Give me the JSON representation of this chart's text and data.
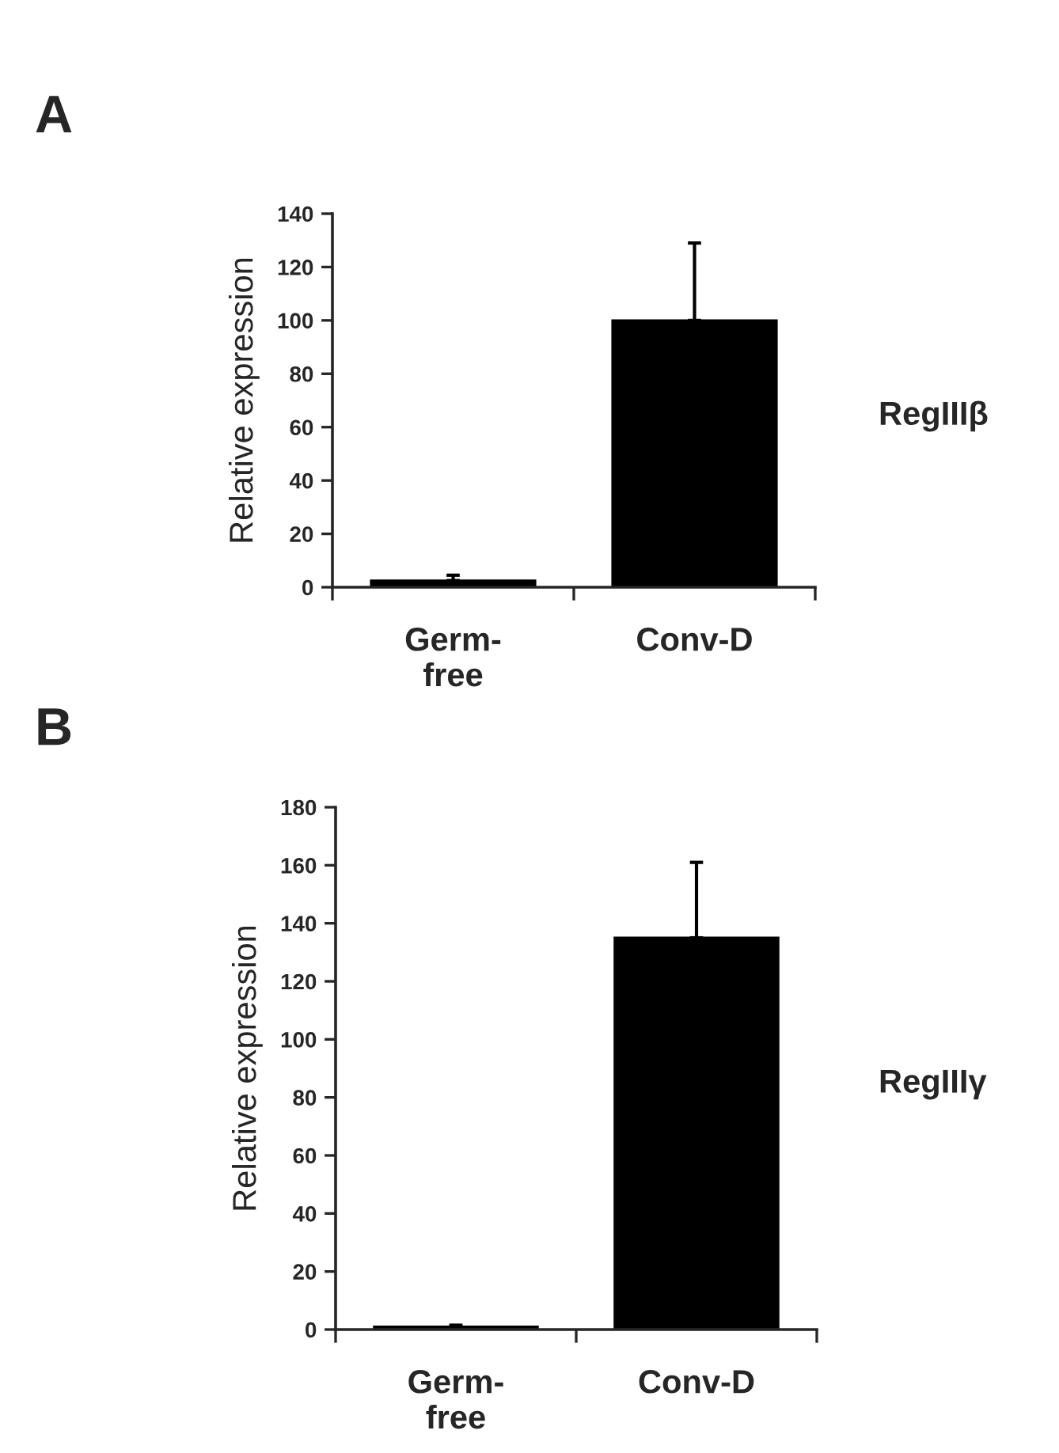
{
  "chart_data": [
    {
      "type": "bar",
      "title": "A",
      "ylabel": "Relative expression",
      "categories": [
        "Germ-\nfree",
        "Conv-D"
      ],
      "values": [
        2.5,
        100
      ],
      "errors": [
        [
          2.5,
          4.5
        ],
        [
          100,
          129
        ]
      ],
      "color": "#000000",
      "ylim": [
        0,
        140
      ],
      "yticks": [
        0,
        20,
        40,
        60,
        80,
        100,
        120,
        140
      ],
      "annotations": [
        "RegIIIβ"
      ],
      "grid": false,
      "legend": false
    },
    {
      "type": "bar",
      "title": "B",
      "ylabel": "Relative expression",
      "categories": [
        "Germ-\nfree",
        "Conv-D"
      ],
      "values": [
        1,
        135
      ],
      "errors": [
        [
          1,
          1.5
        ],
        [
          135,
          161
        ]
      ],
      "color": "#000000",
      "ylim": [
        0,
        180
      ],
      "yticks": [
        0,
        20,
        40,
        60,
        80,
        100,
        120,
        140,
        160,
        180
      ],
      "annotations": [
        "RegIIIγ"
      ],
      "grid": false,
      "legend": false
    }
  ]
}
